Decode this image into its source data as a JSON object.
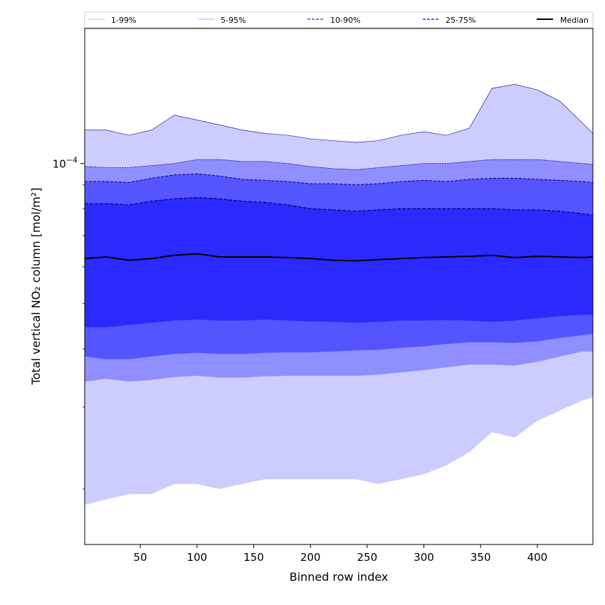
{
  "chart_data": {
    "type": "area",
    "xlabel": "Binned row index",
    "ylabel": "Total vertical NO₂ column [mol/m²]",
    "yscale": "log",
    "xlim": [
      1,
      449
    ],
    "ylim": [
      1.52e-05,
      0.000195
    ],
    "x_ticks": [
      50,
      100,
      150,
      200,
      250,
      300,
      350,
      400
    ],
    "y_major_ticks": [
      {
        "value": 0.0001,
        "base": "10",
        "exponent": "−4"
      }
    ],
    "legend": {
      "placement": "top, above plot",
      "entries": [
        {
          "label": "1-99%",
          "color": "#ccccff",
          "style": "solid"
        },
        {
          "label": "5-95%",
          "color": "#8f8fff",
          "style": "dotted"
        },
        {
          "label": "10-90%",
          "color": "#5555ff",
          "style": "dashed"
        },
        {
          "label": "25-75%",
          "color": "#2a2aff",
          "style": "dashed"
        },
        {
          "label": "Median",
          "color": "#000000",
          "style": "solid"
        }
      ]
    },
    "colors": {
      "band_1_99": "#ccccff",
      "band_5_95": "#8f8fff",
      "band_10_90": "#5555ff",
      "band_25_75": "#2a2aff",
      "band_edge": "#000080",
      "median": "#000000"
    },
    "x": [
      1,
      20,
      40,
      60,
      80,
      100,
      120,
      140,
      160,
      180,
      200,
      220,
      240,
      260,
      280,
      300,
      320,
      340,
      360,
      380,
      400,
      420,
      440,
      449
    ],
    "series": {
      "p99": [
        0.000118,
        0.000118,
        0.000115,
        0.000118,
        0.000127,
        0.000124,
        0.000121,
        0.000118,
        0.000116,
        0.000115,
        0.000113,
        0.000112,
        0.000111,
        0.000112,
        0.000115,
        0.000117,
        0.000115,
        0.000119,
        0.000145,
        0.000148,
        0.000144,
        0.000136,
        0.000122,
        0.000116
      ],
      "p95": [
        9.86e-05,
        9.8e-05,
        9.8e-05,
        9.9e-05,
        0.0001,
        0.000102,
        0.000102,
        0.000101,
        0.000101,
        0.0001,
        9.85e-05,
        9.75e-05,
        9.7e-05,
        9.8e-05,
        9.9e-05,
        0.0001,
        0.0001,
        0.000101,
        0.000102,
        0.000102,
        0.000102,
        0.000101,
        0.0001,
        9.95e-05
      ],
      "p90": [
        9.15e-05,
        9.15e-05,
        9.1e-05,
        9.3e-05,
        9.45e-05,
        9.5e-05,
        9.4e-05,
        9.25e-05,
        9.2e-05,
        9.15e-05,
        9.05e-05,
        9.05e-05,
        9e-05,
        9.05e-05,
        9.15e-05,
        9.2e-05,
        9.15e-05,
        9.25e-05,
        9.3e-05,
        9.3e-05,
        9.25e-05,
        9.2e-05,
        9.15e-05,
        9.1e-05
      ],
      "p75": [
        8.2e-05,
        8.2e-05,
        8.15e-05,
        8.3e-05,
        8.4e-05,
        8.45e-05,
        8.4e-05,
        8.3e-05,
        8.25e-05,
        8.15e-05,
        8e-05,
        7.95e-05,
        7.9e-05,
        7.95e-05,
        8e-05,
        8e-05,
        8e-05,
        8e-05,
        8e-05,
        7.95e-05,
        7.95e-05,
        7.9e-05,
        7.8e-05,
        7.75e-05
      ],
      "median": [
        6.25e-05,
        6.3e-05,
        6.2e-05,
        6.25e-05,
        6.35e-05,
        6.4e-05,
        6.3e-05,
        6.3e-05,
        6.3e-05,
        6.28e-05,
        6.25e-05,
        6.2e-05,
        6.18e-05,
        6.22e-05,
        6.25e-05,
        6.28e-05,
        6.3e-05,
        6.32e-05,
        6.35e-05,
        6.28e-05,
        6.32e-05,
        6.3e-05,
        6.28e-05,
        6.3e-05
      ],
      "p25": [
        4.45e-05,
        4.45e-05,
        4.5e-05,
        4.55e-05,
        4.6e-05,
        4.62e-05,
        4.6e-05,
        4.6e-05,
        4.62e-05,
        4.6e-05,
        4.58e-05,
        4.57e-05,
        4.55e-05,
        4.57e-05,
        4.6e-05,
        4.6e-05,
        4.61e-05,
        4.6e-05,
        4.57e-05,
        4.6e-05,
        4.65e-05,
        4.7e-05,
        4.73e-05,
        4.74e-05
      ],
      "p10": [
        3.85e-05,
        3.8e-05,
        3.8e-05,
        3.85e-05,
        3.9e-05,
        3.92e-05,
        3.9e-05,
        3.9e-05,
        3.92e-05,
        3.93e-05,
        3.93e-05,
        3.95e-05,
        3.97e-05,
        3.98e-05,
        4.02e-05,
        4.05e-05,
        4.1e-05,
        4.13e-05,
        4.13e-05,
        4.12e-05,
        4.15e-05,
        4.22e-05,
        4.28e-05,
        4.3e-05
      ],
      "p5": [
        3.4e-05,
        3.45e-05,
        3.4e-05,
        3.43e-05,
        3.48e-05,
        3.5e-05,
        3.47e-05,
        3.47e-05,
        3.49e-05,
        3.5e-05,
        3.5e-05,
        3.5e-05,
        3.5e-05,
        3.52e-05,
        3.56e-05,
        3.6e-05,
        3.65e-05,
        3.7e-05,
        3.7e-05,
        3.68e-05,
        3.75e-05,
        3.85e-05,
        3.95e-05,
        3.95e-05
      ],
      "p1": [
        1.85e-05,
        1.9e-05,
        1.95e-05,
        1.95e-05,
        2.05e-05,
        2.05e-05,
        2e-05,
        2.05e-05,
        2.1e-05,
        2.1e-05,
        2.1e-05,
        2.1e-05,
        2.1e-05,
        2.05e-05,
        2.1e-05,
        2.15e-05,
        2.25e-05,
        2.4e-05,
        2.65e-05,
        2.58e-05,
        2.8e-05,
        2.95e-05,
        3.1e-05,
        3.15e-05
      ]
    }
  }
}
